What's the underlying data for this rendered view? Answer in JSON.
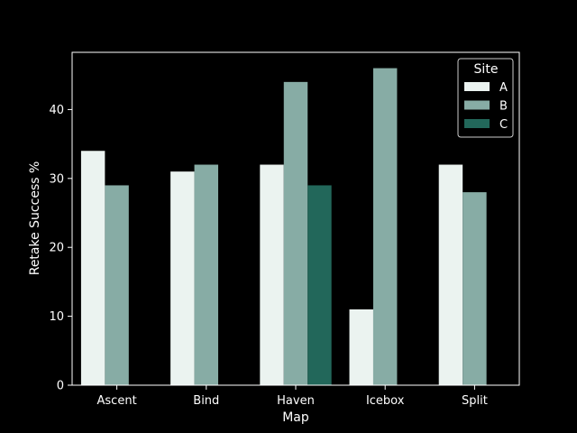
{
  "colors": {
    "background": "#000000",
    "axes": "#ffffff",
    "text": "#ffffff",
    "A": "#ebf3f0",
    "B": "#87aca5",
    "C": "#22675a"
  },
  "chart_data": {
    "type": "bar",
    "title": "",
    "xlabel": "Map",
    "ylabel": "Retake Success %",
    "categories": [
      "Ascent",
      "Bind",
      "Haven",
      "Icebox",
      "Split"
    ],
    "series": [
      {
        "name": "A",
        "values": [
          34,
          31,
          32,
          11,
          32
        ]
      },
      {
        "name": "B",
        "values": [
          29,
          32,
          44,
          46,
          28
        ]
      },
      {
        "name": "C",
        "values": [
          null,
          null,
          29,
          null,
          null
        ]
      }
    ],
    "ylim": [
      0,
      48.3
    ],
    "yticks": [
      0,
      10,
      20,
      30,
      40
    ],
    "legend": {
      "title": "Site",
      "placement": "top-right"
    },
    "grid": false
  }
}
